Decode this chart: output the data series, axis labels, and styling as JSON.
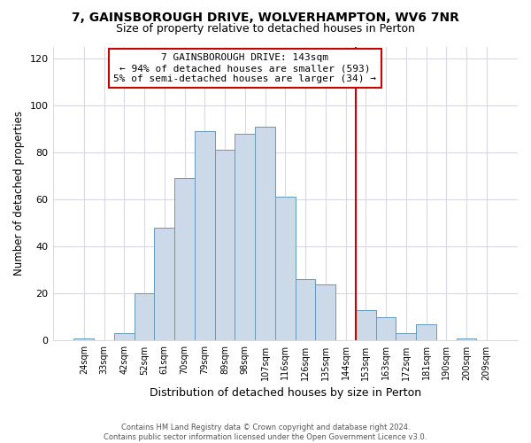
{
  "title": "7, GAINSBOROUGH DRIVE, WOLVERHAMPTON, WV6 7NR",
  "subtitle": "Size of property relative to detached houses in Perton",
  "xlabel": "Distribution of detached houses by size in Perton",
  "ylabel": "Number of detached properties",
  "bin_labels": [
    "24sqm",
    "33sqm",
    "42sqm",
    "52sqm",
    "61sqm",
    "70sqm",
    "79sqm",
    "89sqm",
    "98sqm",
    "107sqm",
    "116sqm",
    "126sqm",
    "135sqm",
    "144sqm",
    "153sqm",
    "163sqm",
    "172sqm",
    "181sqm",
    "190sqm",
    "200sqm",
    "209sqm"
  ],
  "bar_values": [
    1,
    0,
    3,
    20,
    48,
    69,
    89,
    81,
    88,
    91,
    61,
    26,
    24,
    0,
    13,
    10,
    3,
    7,
    0,
    1,
    0
  ],
  "bar_color": "#ccd9e8",
  "bar_edge_color": "#6699bb",
  "vline_x": 13.5,
  "vline_color": "#cc0000",
  "annotation_line1": "7 GAINSBOROUGH DRIVE: 143sqm",
  "annotation_line2": "← 94% of detached houses are smaller (593)",
  "annotation_line3": "5% of semi-detached houses are larger (34) →",
  "annotation_box_edge_color": "#cc0000",
  "ylim": [
    0,
    125
  ],
  "yticks": [
    0,
    20,
    40,
    60,
    80,
    100,
    120
  ],
  "footer_line1": "Contains HM Land Registry data © Crown copyright and database right 2024.",
  "footer_line2": "Contains public sector information licensed under the Open Government Licence v3.0.",
  "background_color": "#ffffff",
  "plot_background": "#ffffff",
  "grid_color": "#d8d8e8",
  "title_fontsize": 10,
  "subtitle_fontsize": 9,
  "tick_fontsize": 7,
  "ylabel_fontsize": 8.5,
  "xlabel_fontsize": 9
}
